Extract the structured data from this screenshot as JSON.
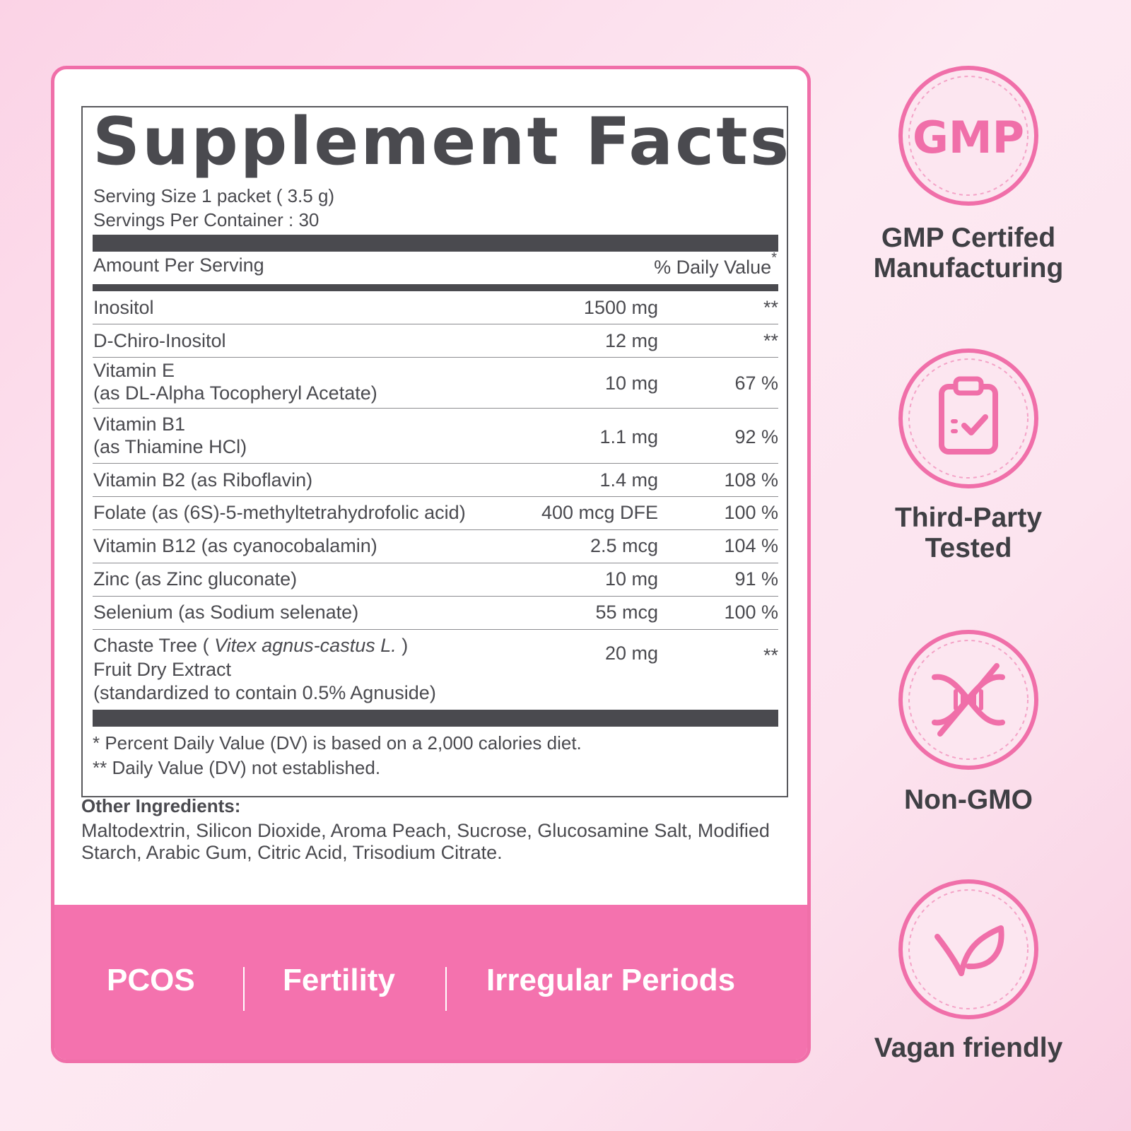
{
  "facts": {
    "title": "Supplement Facts",
    "serving_size": "Serving Size 1 packet ( 3.5 g)",
    "servings_per_container": "Servings Per Container : 30",
    "amount_header": "Amount Per Serving",
    "dv_header": "% Daily  Value",
    "dv_header_mark": "*",
    "rows": [
      {
        "name": "Inositol",
        "amount": "1500 mg",
        "dv": "**"
      },
      {
        "name": "D-Chiro-Inositol",
        "amount": "12 mg",
        "dv": "**"
      },
      {
        "name": "Vitamin E",
        "name2": "(as DL-Alpha Tocopheryl Acetate)",
        "amount": "10 mg",
        "dv": "67 %"
      },
      {
        "name": "Vitamin B1",
        "name2": "(as Thiamine HCl)",
        "amount": "1.1 mg",
        "dv": "92 %"
      },
      {
        "name": "Vitamin B2 (as Riboflavin)",
        "amount": "1.4 mg",
        "dv": "108 %"
      },
      {
        "name": "Folate (as (6S)-5-methyltetrahydrofolic acid)",
        "amount": "400 mcg DFE",
        "dv": "100 %"
      },
      {
        "name": "Vitamin B12 (as cyanocobalamin)",
        "amount": "2.5 mcg",
        "dv": "104 %"
      },
      {
        "name": "Zinc (as Zinc gluconate)",
        "amount": "10 mg",
        "dv": "91 %"
      },
      {
        "name": "Selenium (as Sodium selenate)",
        "amount": "55 mcg",
        "dv": "100 %"
      },
      {
        "name_a": "Chaste Tree ( ",
        "name_italic": "Vitex agnus-castus L.",
        "name_b": " )",
        "name2": "Fruit Dry Extract",
        "name3": "(standardized to contain 0.5% Agnuside)",
        "amount": "20 mg",
        "dv": "**"
      }
    ],
    "footnote1": "* Percent Daily Value (DV) is based on a 2,000 calories diet.",
    "footnote2": "** Daily Value (DV) not established."
  },
  "other_ingredients": {
    "heading": "Other Ingredients:",
    "text": "Maltodextrin, Silicon Dioxide, Aroma Peach, Sucrose, Glucosamine Salt, Modified Starch, Arabic Gum, Citric Acid, Trisodium Citrate."
  },
  "tags": [
    "PCOS",
    "Fertility",
    "Irregular Periods"
  ],
  "badges": [
    {
      "icon": "gmp-icon",
      "icon_text": "GMP",
      "line1": "GMP Certifed",
      "line2": "Manufacturing"
    },
    {
      "icon": "clipboard-check-icon",
      "line1": "Third-Party",
      "line2": "Tested"
    },
    {
      "icon": "dna-icon",
      "line1": "Non-GMO"
    },
    {
      "icon": "leaf-icon",
      "line1": "Vagan friendly"
    }
  ],
  "colors": {
    "accent_pink": "#f472ae",
    "text_gray": "#4a4a4f",
    "badge_fill": "#fce6f0"
  }
}
